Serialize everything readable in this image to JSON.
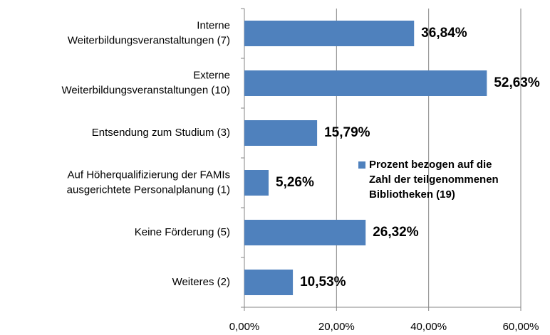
{
  "chart_data": {
    "type": "bar",
    "orientation": "horizontal",
    "categories": [
      "Interne\nWeiterbildungsveranstaltungen (7)",
      "Externe\nWeiterbildungsveranstaltungen (10)",
      "Entsendung zum Studium (3)",
      "Auf Höherqualifizierung der FAMIs\nausgerichtete Personalplanung (1)",
      "Keine Förderung (5)",
      "Weiteres (2)"
    ],
    "series": [
      {
        "name": "Prozent bezogen auf die\nZahl der teilgenommenen\nBibliotheken (19)",
        "color": "#4f81bd",
        "values": [
          36.84,
          52.63,
          15.79,
          5.26,
          26.32,
          10.53
        ],
        "value_labels": [
          "36,84%",
          "52,63%",
          "15,79%",
          "5,26%",
          "26,32%",
          "10,53%"
        ]
      }
    ],
    "xlim": [
      0,
      60
    ],
    "xticks": [
      {
        "value": 0,
        "label": "0,00%"
      },
      {
        "value": 20,
        "label": "20,00%"
      },
      {
        "value": 40,
        "label": "40,00%"
      },
      {
        "value": 60,
        "label": "60,00%"
      }
    ],
    "grid": true,
    "legend": "right"
  }
}
